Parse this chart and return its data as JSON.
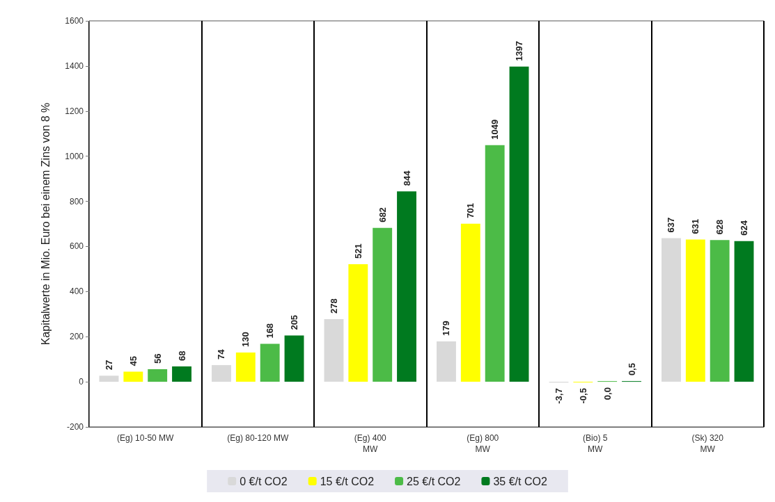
{
  "chart_data": {
    "type": "bar",
    "ylabel": "Kapitalwerte in Mio. Euro bei einem Zins von 8 %",
    "categories": [
      "(Eg) 10-50 MW",
      "(Eg) 80-120 MW",
      "(Eg) 400\nMW",
      "(Eg) 800\nMW",
      "(Bio) 5\nMW",
      "(Sk) 320\nMW"
    ],
    "series": [
      {
        "name": "0 €/t CO2",
        "color": "#d9d9d9",
        "values": [
          27,
          74,
          278,
          179,
          -3.7,
          637
        ],
        "value_labels": [
          "27",
          "74",
          "278",
          "179",
          "-3,7",
          "637"
        ]
      },
      {
        "name": "15 €/t CO2",
        "color": "#ffff00",
        "values": [
          45,
          130,
          521,
          701,
          -0.5,
          631
        ],
        "value_labels": [
          "45",
          "130",
          "521",
          "701",
          "-0,5",
          "631"
        ]
      },
      {
        "name": "25 €/t CO2",
        "color": "#4cbb47",
        "values": [
          56,
          168,
          682,
          1049,
          0.0,
          628
        ],
        "value_labels": [
          "56",
          "168",
          "682",
          "1049",
          "0,0",
          "628"
        ]
      },
      {
        "name": "35 €/t CO2",
        "color": "#007a1f",
        "values": [
          68,
          205,
          844,
          1397,
          0.5,
          624
        ],
        "value_labels": [
          "68",
          "205",
          "844",
          "1397",
          "0,5",
          "624"
        ]
      }
    ],
    "ylim": [
      -200,
      1600
    ],
    "yticks": [
      -200,
      0,
      200,
      400,
      600,
      800,
      1000,
      1200,
      1400,
      1600
    ],
    "grid": "x",
    "legend": "bottom"
  }
}
